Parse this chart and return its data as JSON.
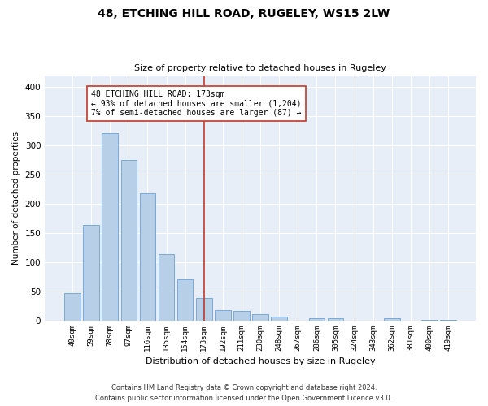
{
  "title": "48, ETCHING HILL ROAD, RUGELEY, WS15 2LW",
  "subtitle": "Size of property relative to detached houses in Rugeley",
  "xlabel": "Distribution of detached houses by size in Rugeley",
  "ylabel": "Number of detached properties",
  "footer_line1": "Contains HM Land Registry data © Crown copyright and database right 2024.",
  "footer_line2": "Contains public sector information licensed under the Open Government Licence v3.0.",
  "categories": [
    "40sqm",
    "59sqm",
    "78sqm",
    "97sqm",
    "116sqm",
    "135sqm",
    "154sqm",
    "173sqm",
    "192sqm",
    "211sqm",
    "230sqm",
    "248sqm",
    "267sqm",
    "286sqm",
    "305sqm",
    "324sqm",
    "343sqm",
    "362sqm",
    "381sqm",
    "400sqm",
    "419sqm"
  ],
  "values": [
    47,
    163,
    320,
    275,
    218,
    113,
    70,
    38,
    17,
    16,
    10,
    6,
    0,
    3,
    3,
    0,
    0,
    4,
    0,
    1,
    1
  ],
  "highlight_index": 7,
  "highlight_color": "#c0392b",
  "bar_color": "#b8cfe8",
  "bar_edge_color": "#6a9fd8",
  "background_color": "#e8eef8",
  "annotation_text": "48 ETCHING HILL ROAD: 173sqm\n← 93% of detached houses are smaller (1,204)\n7% of semi-detached houses are larger (87) →",
  "ylim": [
    0,
    420
  ],
  "yticks": [
    0,
    50,
    100,
    150,
    200,
    250,
    300,
    350,
    400
  ]
}
